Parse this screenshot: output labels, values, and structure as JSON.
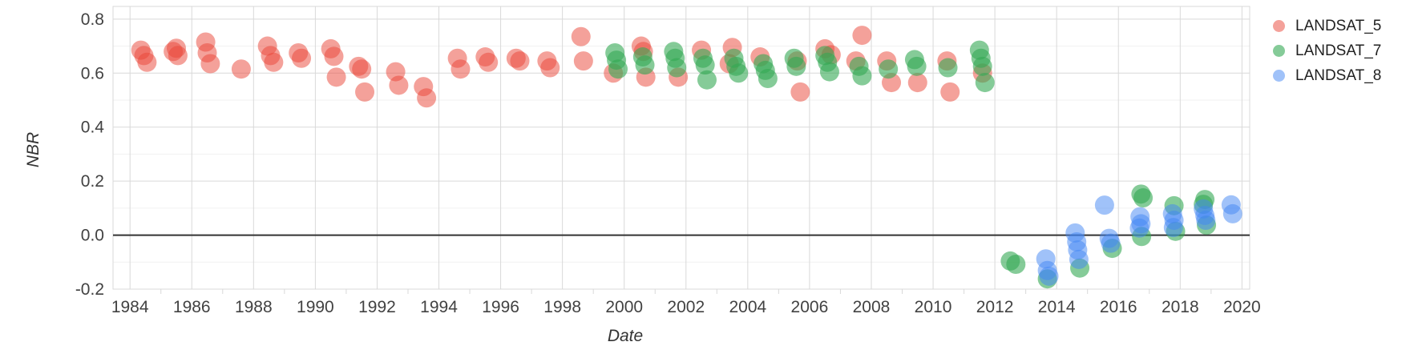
{
  "chart_data": {
    "type": "scatter",
    "title": "",
    "xlabel": "Date",
    "ylabel": "NBR",
    "legend_position": "right",
    "grid": true,
    "baseline": 0,
    "x_axis": {
      "title": "Date",
      "min": 1983.45,
      "max": 2020.25,
      "major_ticks": [
        1984,
        1986,
        1988,
        1990,
        1992,
        1994,
        1996,
        1998,
        2000,
        2002,
        2004,
        2006,
        2008,
        2010,
        2012,
        2014,
        2016,
        2018,
        2020
      ],
      "minor_ticks": [
        1985,
        1987,
        1989,
        1991,
        1993,
        1995,
        1997,
        1999,
        2001,
        2003,
        2005,
        2007,
        2009,
        2011,
        2013,
        2015,
        2017,
        2019
      ]
    },
    "y_axis": {
      "title": "NBR",
      "min": -0.2,
      "max": 0.847,
      "major_ticks": [
        "0.8",
        "0.6",
        "0.4",
        "0.2",
        "0.0",
        "-0.2"
      ],
      "minor_gridlines": [
        0.7,
        0.5,
        0.3,
        0.1,
        -0.1
      ]
    },
    "series": [
      {
        "name": "LANDSAT_5",
        "color": "rgba(234,67,53,0.5)",
        "points": [
          [
            1984.35,
            0.685
          ],
          [
            1984.45,
            0.665
          ],
          [
            1984.55,
            0.64
          ],
          [
            1985.4,
            0.68
          ],
          [
            1985.5,
            0.692
          ],
          [
            1985.55,
            0.665
          ],
          [
            1986.45,
            0.715
          ],
          [
            1986.5,
            0.675
          ],
          [
            1986.6,
            0.635
          ],
          [
            1987.6,
            0.615
          ],
          [
            1988.45,
            0.7
          ],
          [
            1988.55,
            0.665
          ],
          [
            1988.65,
            0.64
          ],
          [
            1989.45,
            0.675
          ],
          [
            1989.55,
            0.655
          ],
          [
            1990.5,
            0.69
          ],
          [
            1990.6,
            0.662
          ],
          [
            1990.68,
            0.585
          ],
          [
            1991.4,
            0.625
          ],
          [
            1991.5,
            0.615
          ],
          [
            1991.6,
            0.53
          ],
          [
            1992.6,
            0.605
          ],
          [
            1992.7,
            0.555
          ],
          [
            1993.5,
            0.55
          ],
          [
            1993.6,
            0.508
          ],
          [
            1994.6,
            0.655
          ],
          [
            1994.7,
            0.615
          ],
          [
            1995.5,
            0.66
          ],
          [
            1995.6,
            0.64
          ],
          [
            1996.5,
            0.655
          ],
          [
            1996.62,
            0.645
          ],
          [
            1997.5,
            0.645
          ],
          [
            1997.6,
            0.62
          ],
          [
            1998.6,
            0.735
          ],
          [
            1998.68,
            0.645
          ],
          [
            1999.65,
            0.6
          ],
          [
            2000.55,
            0.7
          ],
          [
            2000.62,
            0.68
          ],
          [
            2000.7,
            0.585
          ],
          [
            2001.75,
            0.585
          ],
          [
            2002.5,
            0.685
          ],
          [
            2003.4,
            0.635
          ],
          [
            2003.5,
            0.695
          ],
          [
            2004.4,
            0.66
          ],
          [
            2005.6,
            0.645
          ],
          [
            2005.7,
            0.53
          ],
          [
            2006.5,
            0.69
          ],
          [
            2006.7,
            0.668
          ],
          [
            2007.5,
            0.645
          ],
          [
            2007.7,
            0.74
          ],
          [
            2008.5,
            0.645
          ],
          [
            2008.65,
            0.565
          ],
          [
            2009.5,
            0.565
          ],
          [
            2010.45,
            0.645
          ],
          [
            2010.55,
            0.53
          ],
          [
            2011.6,
            0.6
          ]
        ]
      },
      {
        "name": "LANDSAT_7",
        "color": "rgba(52,168,83,0.6)",
        "points": [
          [
            1999.7,
            0.675
          ],
          [
            1999.75,
            0.648
          ],
          [
            1999.8,
            0.615
          ],
          [
            2000.6,
            0.66
          ],
          [
            2000.67,
            0.63
          ],
          [
            2001.6,
            0.68
          ],
          [
            2001.65,
            0.655
          ],
          [
            2001.7,
            0.62
          ],
          [
            2002.55,
            0.655
          ],
          [
            2002.62,
            0.63
          ],
          [
            2002.68,
            0.575
          ],
          [
            2003.55,
            0.655
          ],
          [
            2003.62,
            0.625
          ],
          [
            2003.7,
            0.6
          ],
          [
            2004.5,
            0.635
          ],
          [
            2004.57,
            0.61
          ],
          [
            2004.65,
            0.58
          ],
          [
            2005.5,
            0.655
          ],
          [
            2005.57,
            0.625
          ],
          [
            2006.5,
            0.665
          ],
          [
            2006.58,
            0.64
          ],
          [
            2006.65,
            0.605
          ],
          [
            2007.6,
            0.625
          ],
          [
            2007.7,
            0.59
          ],
          [
            2008.55,
            0.615
          ],
          [
            2009.4,
            0.65
          ],
          [
            2009.47,
            0.625
          ],
          [
            2010.48,
            0.62
          ],
          [
            2011.5,
            0.685
          ],
          [
            2011.55,
            0.655
          ],
          [
            2011.6,
            0.625
          ],
          [
            2011.68,
            0.565
          ],
          [
            2012.5,
            -0.096
          ],
          [
            2012.68,
            -0.108
          ],
          [
            2013.7,
            -0.162
          ],
          [
            2014.75,
            -0.122
          ],
          [
            2015.8,
            -0.049
          ],
          [
            2016.73,
            0.152
          ],
          [
            2016.8,
            0.138
          ],
          [
            2016.75,
            -0.005
          ],
          [
            2017.8,
            0.109
          ],
          [
            2017.85,
            0.014
          ],
          [
            2018.75,
            0.114
          ],
          [
            2018.8,
            0.132
          ],
          [
            2018.85,
            0.037
          ]
        ]
      },
      {
        "name": "LANDSAT_8",
        "color": "rgba(66,133,244,0.5)",
        "points": [
          [
            2013.65,
            -0.088
          ],
          [
            2013.7,
            -0.131
          ],
          [
            2013.75,
            -0.152
          ],
          [
            2014.6,
            0.008
          ],
          [
            2014.65,
            -0.025
          ],
          [
            2014.68,
            -0.055
          ],
          [
            2014.72,
            -0.09
          ],
          [
            2015.55,
            0.111
          ],
          [
            2015.7,
            -0.012
          ],
          [
            2015.75,
            -0.03
          ],
          [
            2016.68,
            0.026
          ],
          [
            2016.7,
            0.068
          ],
          [
            2016.73,
            0.042
          ],
          [
            2017.75,
            0.079
          ],
          [
            2017.8,
            0.055
          ],
          [
            2017.78,
            0.028
          ],
          [
            2018.75,
            0.097
          ],
          [
            2018.8,
            0.073
          ],
          [
            2018.83,
            0.055
          ],
          [
            2019.65,
            0.112
          ],
          [
            2019.7,
            0.079
          ]
        ]
      }
    ]
  },
  "legend": {
    "items": [
      "LANDSAT_5",
      "LANDSAT_7",
      "LANDSAT_8"
    ]
  }
}
